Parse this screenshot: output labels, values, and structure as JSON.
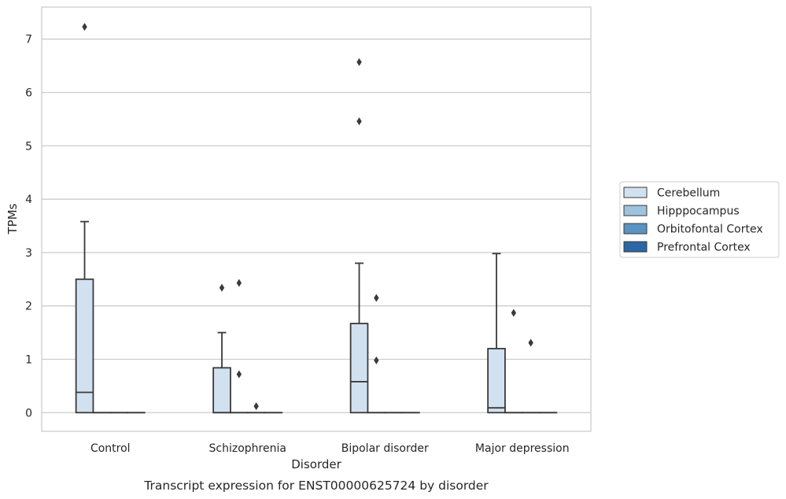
{
  "chart_data": {
    "type": "box",
    "title": "",
    "caption": "Transcript expression for ENST00000625724 by disorder",
    "xlabel": "Disorder",
    "ylabel": "TPMs",
    "categories": [
      "Control",
      "Schizophrenia",
      "Bipolar disorder",
      "Major depression"
    ],
    "ylim": [
      -0.35,
      7.6
    ],
    "yticks": [
      0,
      1,
      2,
      3,
      4,
      5,
      6,
      7
    ],
    "grid": "horizontal",
    "legend_position": "right",
    "series": [
      {
        "name": "Cerebellum",
        "color": "#d2e1f0",
        "boxes": [
          {
            "q1": 0,
            "median": 0.38,
            "q3": 2.5,
            "whisker_low": 0,
            "whisker_high": 3.58,
            "outliers": [
              7.23
            ]
          },
          {
            "q1": 0,
            "median": 0,
            "q3": 0.84,
            "whisker_low": 0,
            "whisker_high": 1.5,
            "outliers": [
              2.34
            ]
          },
          {
            "q1": 0,
            "median": 0.58,
            "q3": 1.67,
            "whisker_low": 0,
            "whisker_high": 2.8,
            "outliers": [
              5.46,
              6.57
            ]
          },
          {
            "q1": 0,
            "median": 0.09,
            "q3": 1.2,
            "whisker_low": 0,
            "whisker_high": 2.98,
            "outliers": []
          }
        ]
      },
      {
        "name": "Hipppocampus",
        "color": "#9dc3de",
        "boxes": [
          {
            "q1": 0,
            "median": 0,
            "q3": 0,
            "whisker_low": 0,
            "whisker_high": 0,
            "outliers": []
          },
          {
            "q1": 0,
            "median": 0,
            "q3": 0,
            "whisker_low": 0,
            "whisker_high": 0,
            "outliers": [
              2.43,
              0.72
            ]
          },
          {
            "q1": 0,
            "median": 0,
            "q3": 0,
            "whisker_low": 0,
            "whisker_high": 0,
            "outliers": [
              2.15,
              0.98
            ]
          },
          {
            "q1": 0,
            "median": 0,
            "q3": 0,
            "whisker_low": 0,
            "whisker_high": 0,
            "outliers": [
              1.87
            ]
          }
        ]
      },
      {
        "name": "Orbitofontal Cortex",
        "color": "#5a94c2",
        "boxes": [
          {
            "q1": 0,
            "median": 0,
            "q3": 0,
            "whisker_low": 0,
            "whisker_high": 0,
            "outliers": []
          },
          {
            "q1": 0,
            "median": 0,
            "q3": 0,
            "whisker_low": 0,
            "whisker_high": 0,
            "outliers": [
              0.12
            ]
          },
          {
            "q1": 0,
            "median": 0,
            "q3": 0,
            "whisker_low": 0,
            "whisker_high": 0,
            "outliers": []
          },
          {
            "q1": 0,
            "median": 0,
            "q3": 0,
            "whisker_low": 0,
            "whisker_high": 0,
            "outliers": [
              1.31
            ]
          }
        ]
      },
      {
        "name": "Prefrontal Cortex",
        "color": "#2a67a5",
        "boxes": [
          {
            "q1": 0,
            "median": 0,
            "q3": 0,
            "whisker_low": 0,
            "whisker_high": 0,
            "outliers": []
          },
          {
            "q1": 0,
            "median": 0,
            "q3": 0,
            "whisker_low": 0,
            "whisker_high": 0,
            "outliers": []
          },
          {
            "q1": 0,
            "median": 0,
            "q3": 0,
            "whisker_low": 0,
            "whisker_high": 0,
            "outliers": []
          },
          {
            "q1": 0,
            "median": 0,
            "q3": 0,
            "whisker_low": 0,
            "whisker_high": 0,
            "outliers": []
          }
        ]
      }
    ]
  }
}
